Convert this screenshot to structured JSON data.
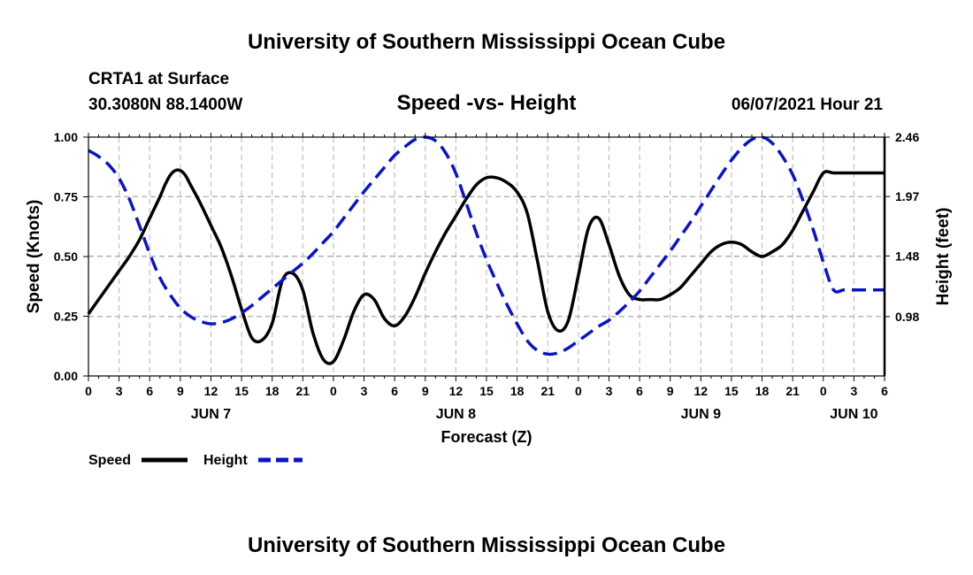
{
  "header": {
    "title_top": "University of Southern Mississippi Ocean Cube",
    "title_bottom": "University of Southern Mississippi Ocean Cube",
    "station": "CRTA1 at Surface",
    "coords": "30.3080N  88.1400W",
    "chart_title": "Speed -vs- Height",
    "datetime": "06/07/2021 Hour 21"
  },
  "legend": {
    "speed_label": "Speed",
    "height_label": "Height"
  },
  "colors": {
    "speed": "#000000",
    "height": "#0a14c8",
    "grid": "#b4b4b4"
  },
  "chart_data": {
    "type": "line",
    "title": "Speed -vs- Height",
    "xlabel": "Forecast (Z)",
    "ylabel": "Speed (Knots)",
    "y2label": "Height (feet)",
    "x_range_hours": [
      0,
      78
    ],
    "ylim": [
      0,
      1.0
    ],
    "y2lim": [
      0.49,
      2.46
    ],
    "yticks": [
      0,
      0.25,
      0.5,
      0.75,
      1.0
    ],
    "ytick_labels": [
      "0.00",
      "0.25",
      "0.50",
      "0.75",
      "1.00"
    ],
    "y2ticks": [
      0.98,
      1.48,
      1.97,
      2.46
    ],
    "y2tick_labels": [
      "0.98",
      "1.48",
      "1.97",
      "2.46"
    ],
    "xticks": [
      0,
      3,
      6,
      9,
      12,
      15,
      18,
      21,
      24,
      27,
      30,
      33,
      36,
      39,
      42,
      45,
      48,
      51,
      54,
      57,
      60,
      63,
      66,
      69,
      72,
      75,
      78
    ],
    "xtick_labels": [
      "0",
      "3",
      "6",
      "9",
      "12",
      "15",
      "18",
      "21",
      "0",
      "3",
      "6",
      "9",
      "12",
      "15",
      "18",
      "21",
      "0",
      "3",
      "6",
      "9",
      "12",
      "15",
      "18",
      "21",
      "0",
      "3",
      "6"
    ],
    "day_labels": [
      {
        "x": 12,
        "label": "JUN 7"
      },
      {
        "x": 36,
        "label": "JUN 8"
      },
      {
        "x": 60,
        "label": "JUN 9"
      },
      {
        "x": 75,
        "label": "JUN 10"
      }
    ],
    "grid": true,
    "legend_position": "bottom-left",
    "series": [
      {
        "name": "Speed",
        "axis": "left",
        "style": "solid",
        "x": [
          0,
          1,
          2,
          3,
          4,
          5,
          6,
          7,
          7.5,
          8,
          8.5,
          9,
          9.5,
          10,
          11,
          12,
          13,
          14,
          15,
          16,
          17,
          18,
          19,
          20,
          21,
          22,
          23,
          24,
          25,
          26,
          27,
          28,
          29,
          30,
          31,
          32,
          33,
          34,
          35,
          36,
          37,
          38,
          39,
          40,
          41,
          42,
          43,
          44,
          45,
          46,
          47,
          48,
          49,
          50,
          51,
          52,
          53,
          54,
          55,
          56,
          57,
          58,
          59,
          60,
          61,
          62,
          63,
          64,
          65,
          66,
          67,
          68,
          69,
          70,
          71,
          72,
          73,
          74,
          75,
          76,
          77,
          78
        ],
        "values": [
          0.26,
          0.32,
          0.38,
          0.44,
          0.5,
          0.57,
          0.66,
          0.75,
          0.8,
          0.84,
          0.86,
          0.86,
          0.84,
          0.8,
          0.72,
          0.63,
          0.54,
          0.42,
          0.28,
          0.16,
          0.15,
          0.22,
          0.4,
          0.43,
          0.36,
          0.18,
          0.07,
          0.06,
          0.15,
          0.27,
          0.34,
          0.32,
          0.24,
          0.21,
          0.25,
          0.33,
          0.43,
          0.52,
          0.6,
          0.67,
          0.74,
          0.8,
          0.83,
          0.83,
          0.81,
          0.77,
          0.68,
          0.48,
          0.27,
          0.19,
          0.23,
          0.42,
          0.62,
          0.66,
          0.55,
          0.42,
          0.34,
          0.32,
          0.32,
          0.32,
          0.34,
          0.37,
          0.42,
          0.47,
          0.52,
          0.55,
          0.56,
          0.55,
          0.52,
          0.5,
          0.52,
          0.55,
          0.61,
          0.69,
          0.77,
          0.85,
          0.85,
          0.85,
          0.85,
          0.85,
          0.85,
          0.85
        ]
      },
      {
        "name": "Height",
        "axis": "right",
        "style": "dashed",
        "x": [
          0,
          1,
          2,
          3,
          4,
          5,
          6,
          7,
          8,
          9,
          10,
          11,
          12,
          13,
          14,
          15,
          16,
          17,
          18,
          19,
          20,
          21,
          22,
          23,
          24,
          25,
          26,
          27,
          28,
          29,
          30,
          31,
          32,
          33,
          34,
          35,
          36,
          37,
          38,
          39,
          40,
          41,
          42,
          43,
          44,
          45,
          46,
          47,
          48,
          49,
          50,
          51,
          52,
          53,
          54,
          55,
          56,
          57,
          58,
          59,
          60,
          61,
          62,
          63,
          64,
          65,
          66,
          67,
          68,
          69,
          70,
          71,
          72,
          73,
          74,
          75,
          76,
          77,
          78
        ],
        "values": [
          2.35,
          2.3,
          2.23,
          2.12,
          1.95,
          1.73,
          1.5,
          1.3,
          1.16,
          1.05,
          0.98,
          0.94,
          0.92,
          0.93,
          0.96,
          1.01,
          1.07,
          1.14,
          1.21,
          1.28,
          1.35,
          1.42,
          1.5,
          1.59,
          1.68,
          1.79,
          1.9,
          2.01,
          2.11,
          2.21,
          2.31,
          2.38,
          2.44,
          2.46,
          2.43,
          2.33,
          2.16,
          1.92,
          1.67,
          1.45,
          1.26,
          1.08,
          0.92,
          0.78,
          0.7,
          0.67,
          0.68,
          0.72,
          0.78,
          0.84,
          0.9,
          0.95,
          1.02,
          1.1,
          1.19,
          1.3,
          1.41,
          1.52,
          1.64,
          1.76,
          1.89,
          2.02,
          2.15,
          2.27,
          2.37,
          2.44,
          2.46,
          2.41,
          2.3,
          2.15,
          1.94,
          1.7,
          1.43,
          1.2,
          1.2,
          1.2,
          1.2,
          1.2,
          1.2
        ]
      }
    ]
  }
}
